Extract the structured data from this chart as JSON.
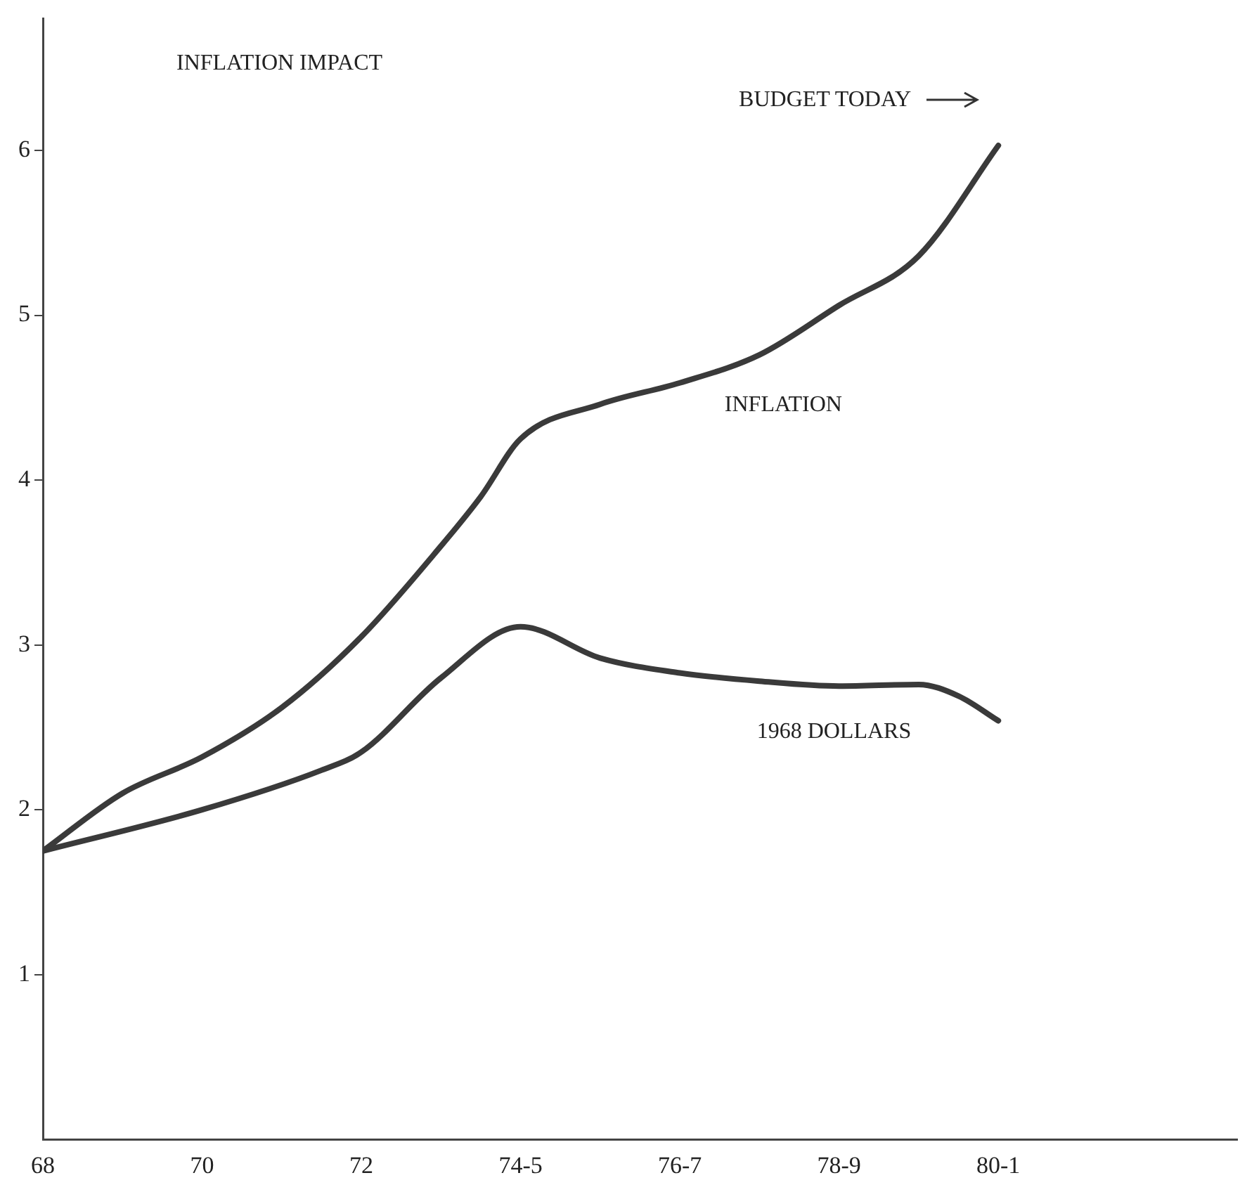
{
  "chart_data": {
    "type": "line",
    "title": "INFLATION IMPACT",
    "xlim": [
      68,
      83
    ],
    "xticks": [
      68,
      70,
      72,
      {
        "value": 74,
        "label": "74-5"
      },
      {
        "value": 76,
        "label": "76-7"
      },
      {
        "value": 78,
        "label": "78-9"
      },
      {
        "value": 80,
        "label": "80-1"
      }
    ],
    "ylim": [
      0,
      6.8
    ],
    "yticks": [
      1,
      2,
      3,
      4,
      5,
      6
    ],
    "grid": false,
    "legend": "top right",
    "marker": "none",
    "line_style": "solid",
    "series": [
      {
        "name": "BUDGET TODAY",
        "color": "#3a3a3a",
        "x": [
          68,
          69,
          70,
          71,
          72,
          73,
          73.5,
          74,
          75,
          76,
          77,
          78,
          79,
          80
        ],
        "values": [
          1.75,
          2.1,
          2.32,
          2.62,
          3.05,
          3.6,
          3.9,
          4.25,
          4.46,
          4.59,
          4.76,
          5.06,
          5.36,
          6.03
        ]
      },
      {
        "name": "1968 DOLLARS",
        "color": "#3a3a3a",
        "x": [
          68,
          70,
          71.5,
          72,
          73,
          74,
          75,
          76,
          77,
          78,
          79,
          79.5,
          80
        ],
        "values": [
          1.75,
          2.0,
          2.24,
          2.35,
          2.8,
          3.11,
          2.92,
          2.83,
          2.78,
          2.75,
          2.76,
          2.69,
          2.54
        ]
      }
    ],
    "annotations": [
      "INFLATION"
    ]
  }
}
